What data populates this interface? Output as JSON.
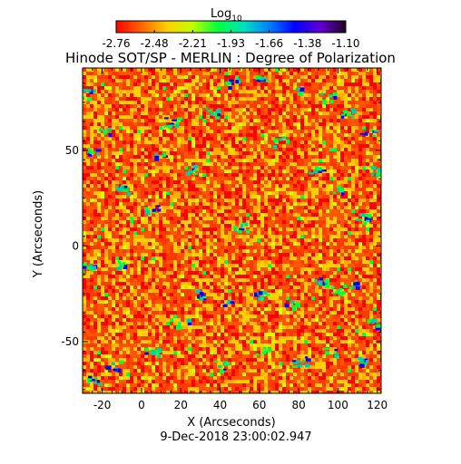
{
  "chart_data": {
    "type": "heatmap",
    "title": "Hinode SOT/SP - MERLIN : Degree of Polarization",
    "xlabel": "X (Arcseconds)",
    "ylabel": "Y (Arcseconds)",
    "date_label": "9-Dec-2018 23:00:02.947",
    "xlim": [
      -30,
      122
    ],
    "ylim": [
      -77,
      93
    ],
    "xticks": [
      -20,
      0,
      20,
      40,
      60,
      80,
      100,
      120
    ],
    "yticks": [
      -50,
      0,
      50
    ],
    "colorbar": {
      "label": "Log",
      "label_sub": "10",
      "ticks": [
        "-2.76",
        "-2.48",
        "-2.21",
        "-1.93",
        "-1.66",
        "-1.38",
        "-1.10"
      ],
      "range": [
        -2.76,
        -1.1
      ],
      "colormap": [
        "#ff0000",
        "#ff6600",
        "#ffd000",
        "#c0ff00",
        "#00ff40",
        "#00e0c0",
        "#0080ff",
        "#0000ff",
        "#6000d0",
        "#200020"
      ]
    },
    "field_summary": {
      "dominant_range": [
        -2.76,
        -2.48
      ],
      "background_color": "#ff3a00",
      "speckle_color": "#ffd000",
      "network_color": "#00ff40",
      "peak_color": "#0000ff"
    }
  }
}
